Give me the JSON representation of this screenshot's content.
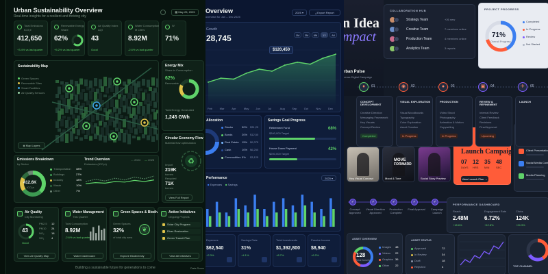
{
  "sustain": {
    "title": "Urban Sustainability Overview",
    "subtitle": "Real-time insights for a resilient and thriving city",
    "date": "May 26, 2025",
    "kpis": [
      {
        "label": "Total Emissions",
        "unit": "tCO₂e",
        "value": "412,650",
        "delta": "+3.4% vs last quarter"
      },
      {
        "label": "Renewable Energy",
        "unit": "Share",
        "value": "62%",
        "delta": "+5.2% vs last quarter",
        "ring": 0.62
      },
      {
        "label": "Air Quality Index",
        "unit": "AQI",
        "value": "43",
        "delta": "Good"
      },
      {
        "label": "Water Consumption",
        "unit": "M Liters",
        "value": "8.92M",
        "delta": "-2.6% vs last quarter"
      },
      {
        "label": "W",
        "unit": "",
        "value": "71%",
        "delta": ""
      }
    ],
    "map": {
      "title": "Sustainability Map",
      "legend": [
        "Green Spaces",
        "Renewable Sites",
        "Smart Facilities",
        "Air Quality Sensors"
      ],
      "layers_btn": "Map Layers"
    },
    "energy": {
      "title": "Energy Mix",
      "subtitle": "Share in Consumption",
      "value": "62%",
      "caption": "Renewable",
      "total_label": "Total Energy Generated",
      "total_value": "1,245 GWh",
      "ring": 0.62
    },
    "circular": {
      "title": "Circular Economy Flow",
      "subtitle": "Material flow optimization",
      "rows": [
        [
          "Import",
          "219K",
          "tonnes"
        ],
        [
          "Recycled",
          "71K",
          "tonnes"
        ]
      ],
      "report": "View Full Report"
    },
    "emissions": {
      "title": "Emissions Breakdown",
      "subtitle": "by Sector",
      "center_value": "412.6K",
      "center_unit": "tCO₂e",
      "sectors": [
        [
          "Transportation",
          "38%"
        ],
        [
          "Buildings",
          "27%"
        ],
        [
          "Industry",
          "18%"
        ],
        [
          "Waste",
          "10%"
        ],
        [
          "Other",
          "7%"
        ]
      ],
      "trend_title": "Trend Overview",
      "trend_sub": "Emissions (tCO₂e)",
      "legend": [
        "2024",
        "2025"
      ]
    },
    "bottom": [
      {
        "title": "Air Quality",
        "sub": "City Monitoring",
        "value": "43",
        "caption": "Good",
        "rows": [
          [
            "PM2.5",
            "12"
          ],
          [
            "PM10",
            "24"
          ],
          [
            "NO₂",
            "18"
          ],
          [
            "SO₂",
            "4"
          ]
        ],
        "btn": "View Air Quality Map"
      },
      {
        "title": "Water Management",
        "sub": "This Quarter",
        "label": "Total Consumption",
        "value": "8.92M",
        "delta": "-2.6% vs last quarter",
        "btn": "Water Dashboard"
      },
      {
        "title": "Green Spaces & Biodiversity",
        "sub": "",
        "label": "Green Spaces",
        "value": "32%",
        "delta": "of total city area",
        "btn": "Explore Biodiversity"
      },
      {
        "title": "Active Initiatives",
        "sub": "Ongoing Projects",
        "items": [
          "Solar City Program",
          "River Restoration",
          "Green Transit Plan"
        ],
        "btn": "View All Initiatives"
      }
    ],
    "footer": "Building a sustainable future for generations to come",
    "footer_right": "Data Sourc"
  },
  "finance": {
    "title": "Overview",
    "subtitle": "overview for Jan – Dec 2025",
    "year": "2025",
    "export": "Export Report",
    "growth_label": "Growth",
    "big_value": "28,745",
    "tooltip": "$120,450",
    "periods": [
      "1M",
      "3M",
      "6M",
      "1Y",
      "All"
    ],
    "months": [
      "Feb",
      "Mar",
      "Apr",
      "May",
      "Jun",
      "Jul",
      "Aug",
      "Sep",
      "Oct",
      "Nov",
      "Dec"
    ],
    "allocation": {
      "title": "Allocation",
      "items": [
        [
          "Stocks",
          "50%",
          "$31,25"
        ],
        [
          "Bonds",
          "20%",
          "$12,50"
        ],
        [
          "Real Estate",
          "15%",
          "$9,375"
        ],
        [
          "Cash",
          "10%",
          "$6,250"
        ],
        [
          "Commodities",
          "5%",
          "$3,125"
        ]
      ]
    },
    "savings": {
      "title": "Savings Goal Progress",
      "goals": [
        {
          "name": "Retirement Fund",
          "pct": "68%",
          "amount": "$340,000 Target",
          "fill": 0.68
        },
        {
          "name": "House Down Payment",
          "pct": "42%",
          "amount": "$200,000 Target",
          "fill": 0.42
        }
      ]
    },
    "perf": {
      "title": "Performance",
      "year": "2025",
      "legend": [
        "Expenses",
        "Savings"
      ]
    },
    "stats": [
      {
        "label": "Expenses",
        "value": "$62,540",
        "delta": "+2.3%"
      },
      {
        "label": "Savings Rate",
        "value": "31%",
        "delta": "+4.1%"
      },
      {
        "label": "Total Investments",
        "value": "$1,392,800",
        "delta": "+8.7%"
      },
      {
        "label": "Passive Income",
        "value": "$8,940",
        "delta": "+6.2%"
      }
    ]
  },
  "creative": {
    "hero1": "n Idea",
    "hero2": "mpact",
    "hero_sub": "rban Pulse",
    "hero_desc": "cross Digital Campaign",
    "collab": {
      "title": "COLLABORATION HUB",
      "items": [
        [
          "Strategy Team",
          "+26 new"
        ],
        [
          "Creative Team",
          "7 members online"
        ],
        [
          "Production Team",
          "4 members online"
        ],
        [
          "Analytics Team",
          "3 reports"
        ]
      ]
    },
    "progress": {
      "title": "PROJECT PROGRESS",
      "value": "71%",
      "caption": "Overall Progress",
      "ring": 0.71,
      "legend": [
        "Completed",
        "In Progress",
        "Review",
        "Not Started"
      ]
    },
    "steps": [
      {
        "num": "01",
        "name": "CONCEPT DEVELOPMENT",
        "items": [
          "Creative Direction",
          "Messaging Framework",
          "Key Visuals",
          "Concept Review"
        ],
        "status": "Completed"
      },
      {
        "num": "02",
        "name": "VISUAL EXPLORATION",
        "items": [
          "Visual Moodboards",
          "Typography",
          "Color Exploration",
          "Asset Creation"
        ],
        "status": "In Progress"
      },
      {
        "num": "03",
        "name": "PRODUCTION",
        "items": [
          "Video Shoot",
          "Photography",
          "Animation & Motion",
          "Copywriting"
        ],
        "status": "In Progress"
      },
      {
        "num": "04",
        "name": "REVIEW & REFINEMENT",
        "items": [
          "Internal Review",
          "Client Feedback",
          "Revisions",
          "Final Approval"
        ],
        "status": "Upcoming"
      },
      {
        "num": "05",
        "name": "LAUNCH",
        "items": [],
        "status": ""
      }
    ],
    "tiles": [
      "Key Visual Concept",
      "Mood & Tone",
      "Social Story Preview"
    ],
    "move_text": [
      "MOVE",
      "FORWARD"
    ],
    "launch": {
      "title": "Launch Campaign",
      "countdown": [
        [
          "07",
          "DAYS"
        ],
        [
          "12",
          "HRS"
        ],
        [
          "35",
          "MIN"
        ],
        [
          "48",
          "SEC"
        ]
      ],
      "btn": "View Launch Plan"
    },
    "tasks": {
      "title": "TODAY'S TASKS",
      "items": [
        "Review Final Edit",
        "Client Presentation",
        "Social Media Content",
        "Media Planning"
      ]
    },
    "timeline": [
      "Concept Approved",
      "Visual Direction Approved",
      "Production Complete",
      "Final Approval",
      "Campaign Launch"
    ],
    "perf": {
      "title": "PERFORMANCE DASHBOARD",
      "kpis": [
        [
          "Reach",
          "2.48M",
          "+18.6%"
        ],
        [
          "Engagement Rate",
          "6.72%",
          "+12.8%"
        ],
        [
          "Clicks",
          "124K",
          "+24.3%"
        ]
      ]
    },
    "assets": {
      "title": "ASSET OVERVIEW",
      "value": "128",
      "caption": "Total Assets",
      "items": [
        [
          "Images",
          "48"
        ],
        [
          "Videos",
          "22"
        ],
        [
          "Graphics",
          "36"
        ],
        [
          "Other",
          "22"
        ]
      ]
    },
    "status": {
      "title": "ASSET STATUS",
      "items": [
        [
          "Approved",
          "72"
        ],
        [
          "In Review",
          "34"
        ],
        [
          "Draft",
          "18"
        ],
        [
          "Rejected",
          "4"
        ]
      ]
    },
    "channel_title": "TOP CHANNEL"
  },
  "colors": {
    "green": "#5fd36a",
    "blue": "#3b7ef0",
    "orange": "#ff5c39",
    "purple": "#7d5cff"
  },
  "chart_data": [
    {
      "type": "area",
      "name": "finance-growth",
      "x": [
        "Feb",
        "Mar",
        "Apr",
        "May",
        "Jun",
        "Jul",
        "Aug",
        "Sep",
        "Oct",
        "Nov",
        "Dec"
      ],
      "values": [
        40,
        48,
        46,
        58,
        66,
        62,
        74,
        80,
        76,
        88,
        96
      ],
      "ylim": [
        0,
        110
      ]
    },
    {
      "type": "bar",
      "name": "finance-performance",
      "series": [
        {
          "name": "Expenses",
          "values": [
            5,
            7,
            4,
            8,
            6,
            9,
            5,
            7,
            8,
            6,
            9,
            7,
            5,
            8
          ]
        },
        {
          "name": "Savings",
          "values": [
            3,
            4,
            3,
            5,
            4,
            5,
            3,
            4,
            5,
            4,
            6,
            4,
            3,
            5
          ]
        }
      ],
      "ylim": [
        0,
        10
      ]
    },
    {
      "type": "line",
      "name": "emissions-trend",
      "x": [
        1,
        2,
        3,
        4,
        5,
        6,
        7,
        8
      ],
      "series": [
        {
          "name": "2024",
          "values": [
            30,
            34,
            31,
            36,
            33,
            38,
            35,
            40
          ]
        },
        {
          "name": "2025",
          "values": [
            26,
            28,
            27,
            30,
            29,
            32,
            30,
            33
          ]
        }
      ],
      "ylim": [
        0,
        50
      ]
    },
    {
      "type": "bar",
      "name": "water-bars",
      "values": [
        6,
        9,
        5,
        10,
        7,
        8
      ],
      "ylim": [
        0,
        12
      ]
    },
    {
      "type": "pie",
      "name": "emissions-sectors",
      "values": [
        38,
        27,
        18,
        10,
        7
      ]
    }
  ]
}
